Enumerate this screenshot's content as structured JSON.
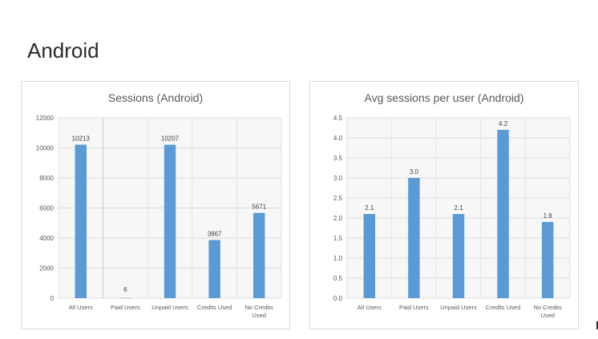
{
  "page": {
    "title": "Android"
  },
  "chart_data": [
    {
      "type": "bar",
      "title": "Sessions (Android)",
      "categories": [
        "All Users",
        "Paid Users",
        "Unpaid Users",
        "Credits Used",
        "No Credits Used"
      ],
      "values": [
        10213,
        6,
        10207,
        3867,
        5671
      ],
      "data_labels": [
        "10213",
        "6",
        "10207",
        "3867",
        "5671"
      ],
      "ylim": [
        0,
        12000
      ],
      "yticks": [
        0,
        2000,
        4000,
        6000,
        8000,
        10000,
        12000
      ],
      "ytick_labels": [
        "0",
        "2000",
        "4000",
        "6000",
        "8000",
        "10000",
        "12000"
      ],
      "xlabel": "",
      "ylabel": "",
      "grid": true,
      "bar_color": "#5b9bd5"
    },
    {
      "type": "bar",
      "title": "Avg sessions per user (Android)",
      "categories": [
        "All Users",
        "Paid Users",
        "Unpaid Users",
        "Credits Used",
        "No Credits Used"
      ],
      "values": [
        2.1,
        3.0,
        2.1,
        4.2,
        1.9
      ],
      "data_labels": [
        "2.1",
        "3.0",
        "2.1",
        "4.2",
        "1.9"
      ],
      "ylim": [
        0,
        4.5
      ],
      "yticks": [
        0,
        0.5,
        1.0,
        1.5,
        2.0,
        2.5,
        3.0,
        3.5,
        4.0,
        4.5
      ],
      "ytick_labels": [
        "0.0",
        "0.5",
        "1.0",
        "1.5",
        "2.0",
        "2.5",
        "3.0",
        "3.5",
        "4.0",
        "4.5"
      ],
      "xlabel": "",
      "ylabel": "",
      "grid": true,
      "bar_color": "#5b9bd5"
    }
  ]
}
